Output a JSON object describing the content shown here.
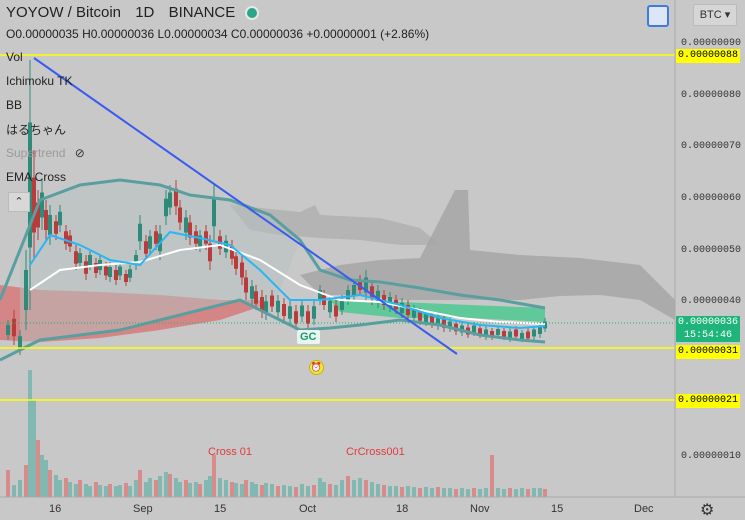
{
  "header": {
    "symbol": "YOYOW / Bitcoin",
    "interval": "1D",
    "exchange": "BINANCE"
  },
  "ohlc": {
    "open": "O0.00000035",
    "high": "H0.00000036",
    "low": "L0.00000034",
    "close": "C0.00000036",
    "change": "+0.00000001 (+2.86%)"
  },
  "indicators": [
    {
      "label": "Vol"
    },
    {
      "label": "Ichimoku TK"
    },
    {
      "label": "BB"
    },
    {
      "label": "はるちゃん"
    },
    {
      "label": "Supertrend"
    },
    {
      "label": "EMA Cross"
    }
  ],
  "toolbar": {
    "currency": "BTC ▾",
    "collapse": "⌃"
  },
  "yaxis": {
    "ticks": [
      "0.00000090",
      "0.00000080",
      "0.00000070",
      "0.00000060",
      "0.00000050",
      "0.00000040",
      "0.00000010"
    ],
    "highlight_88": "0.00000088",
    "highlight_31": "0.00000031",
    "highlight_21": "0.00000021",
    "price_last": "0.00000036",
    "countdown": "15:54:46"
  },
  "xaxis": {
    "labels": [
      "16",
      "Sep",
      "15",
      "Oct",
      "18",
      "Nov",
      "15",
      "Dec"
    ]
  },
  "annotations": {
    "gc": "GC",
    "cross1": "Cross 01",
    "cross2": "CrCross001"
  },
  "colors": {
    "accent": "#2962ff",
    "bull": "#26a69a",
    "bear": "#ef5350",
    "highlight": "#ffff00"
  }
}
